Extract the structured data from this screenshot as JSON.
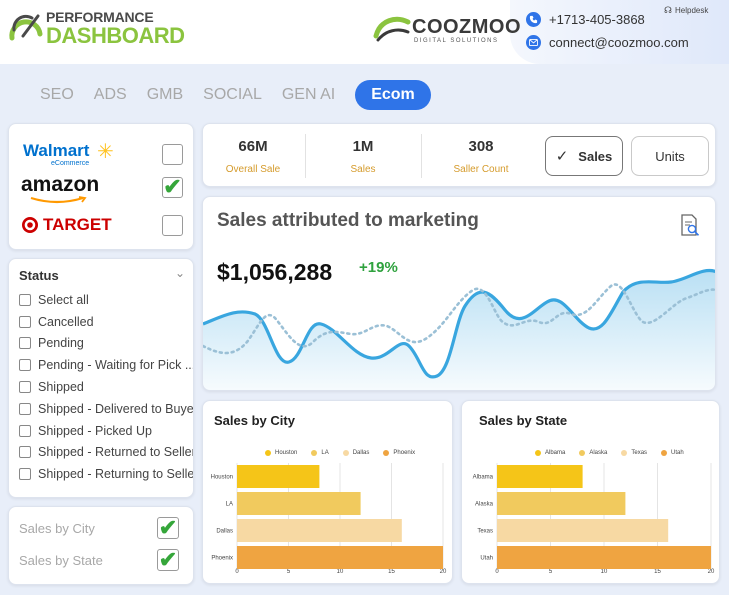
{
  "header": {
    "logo_line1": "PERFORMANCE",
    "logo_line2": "DASHBOARD",
    "brand_name": "COOZMOO",
    "brand_tagline": "DIGITAL SOLUTIONS",
    "phone": "+1713-405-3868",
    "email": "connect@coozmoo.com",
    "helpdesk": "Helpdesk"
  },
  "tabs": [
    {
      "label": "SEO",
      "active": false
    },
    {
      "label": "ADS",
      "active": false
    },
    {
      "label": "GMB",
      "active": false
    },
    {
      "label": "SOCIAL",
      "active": false
    },
    {
      "label": "GEN AI",
      "active": false
    },
    {
      "label": "Ecom",
      "active": true
    }
  ],
  "stores": [
    {
      "name": "Walmart",
      "sub": "eCommerce",
      "checked": false
    },
    {
      "name": "amazon",
      "checked": true
    },
    {
      "name": "TARGET",
      "checked": false
    }
  ],
  "status": {
    "title": "Status",
    "items": [
      "Select all",
      "Cancelled",
      "Pending",
      "Pending - Waiting for Pick ...",
      "Shipped",
      "Shipped - Delivered to Buyer",
      "Shipped - Picked Up",
      "Shipped - Returned to Seller",
      "Shipped - Returning to Seller"
    ]
  },
  "toggles": {
    "city_label": "Sales by City",
    "state_label": "Sales by State"
  },
  "kpis": [
    {
      "value": "66M",
      "label": "Overall Sale"
    },
    {
      "value": "1M",
      "label": "Sales"
    },
    {
      "value": "308",
      "label": "Saller Count"
    }
  ],
  "buttons": {
    "sales": "Sales",
    "units": "Units"
  },
  "marketing": {
    "title": "Sales attributed to marketing",
    "value": "$1,056,288",
    "growth": "+19%"
  },
  "colors": {
    "accent": "#2f74e8",
    "brand_green": "#8bc43f",
    "growth_green": "#2fa23e",
    "line": "#39a6df"
  },
  "chart_data": [
    {
      "type": "bar",
      "orientation": "horizontal",
      "title": "Sales by City",
      "categories": [
        "Houston",
        "LA",
        "Dallas",
        "Phoenix"
      ],
      "values": [
        8,
        12,
        16,
        20
      ],
      "colors": [
        "#f5c518",
        "#f1ca5e",
        "#f7d9a3",
        "#efa441"
      ],
      "legend_position": "top",
      "xlim": [
        0,
        20
      ],
      "xticks": [
        0,
        5,
        10,
        15,
        20
      ],
      "grid": true
    },
    {
      "type": "bar",
      "orientation": "horizontal",
      "title": "Sales by State",
      "categories": [
        "Albama",
        "Alaska",
        "Texas",
        "Utah"
      ],
      "values": [
        8,
        12,
        16,
        20
      ],
      "colors": [
        "#f5c518",
        "#f1ca5e",
        "#f7d9a3",
        "#efa441"
      ],
      "legend_position": "top",
      "xlim": [
        0,
        20
      ],
      "xticks": [
        0,
        5,
        10,
        15,
        20
      ],
      "grid": true
    }
  ]
}
